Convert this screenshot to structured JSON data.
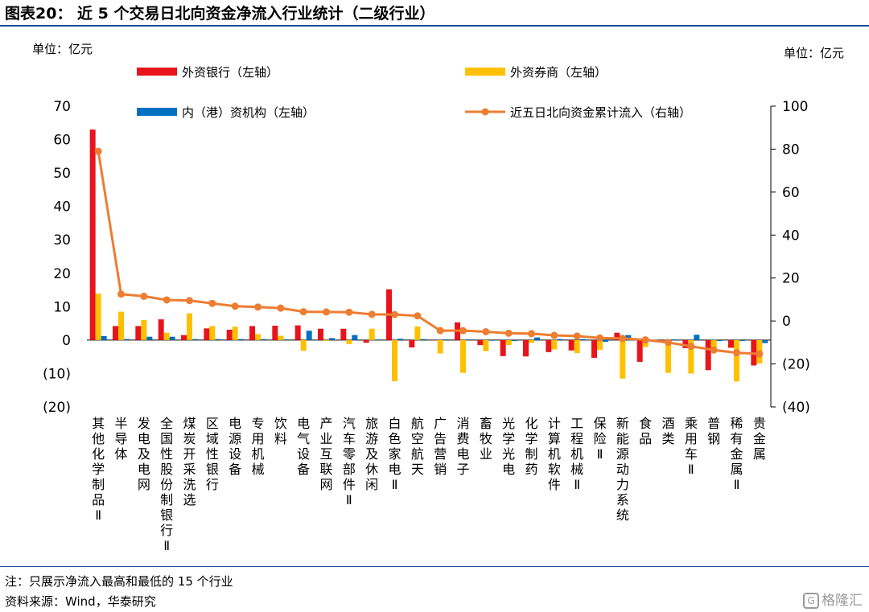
{
  "title": "图表20：  近 5 个交易日北向资金净流入行业统计（二级行业）",
  "note": "注：只展示净流入最高和最低的 15 个行业",
  "source": "资料来源：Wind，华泰研究",
  "watermark": {
    "icon": "G",
    "text": "格隆汇"
  },
  "chart_data": {
    "type": "bar",
    "left_unit": "单位：亿元",
    "right_unit": "单位：亿元",
    "categories": [
      "其他化学制品Ⅱ",
      "半导体",
      "发电及电网",
      "全国性股份制银行Ⅱ",
      "煤炭开采洗选",
      "区域性银行",
      "电源设备",
      "专用机械",
      "饮料",
      "电气设备",
      "产业互联网",
      "汽车零部件Ⅱ",
      "旅游及休闲",
      "白色家电Ⅱ",
      "航空航天",
      "广告营销",
      "消费电子",
      "畜牧业",
      "光学光电",
      "化学制药",
      "计算机软件",
      "工程机械Ⅱ",
      "保险Ⅱ",
      "新能源动力系统",
      "食品",
      "酒类",
      "乘用车Ⅱ",
      "普钢",
      "稀有金属Ⅱ",
      "贵金属"
    ],
    "series": [
      {
        "name": "外资银行（左轴）",
        "axis": "left",
        "color": "#e8141b",
        "values": [
          63,
          4.2,
          4.2,
          6.2,
          1.5,
          3.5,
          3.1,
          4.2,
          4.3,
          4.4,
          3.4,
          3.4,
          -0.8,
          15.2,
          -2.2,
          0,
          5.3,
          -1.5,
          -4.8,
          -4.9,
          -3.6,
          -3.1,
          -5.3,
          2.2,
          -6.5,
          0,
          -2.4,
          -9,
          -2.3,
          -7.6
        ]
      },
      {
        "name": "外资券商（左轴）",
        "axis": "left",
        "color": "#ffc000",
        "values": [
          13.9,
          8.5,
          6,
          2.2,
          8,
          4.2,
          4,
          1.8,
          1.3,
          -3.2,
          -0.3,
          -1.2,
          3.4,
          -12.3,
          4.1,
          -4,
          -9.8,
          -3.3,
          -1.5,
          -0.8,
          -2.8,
          -3.9,
          -2.9,
          -11.5,
          -2.1,
          -9.8,
          -10,
          -3.5,
          -12.4,
          -7
        ]
      },
      {
        "name": "内（港）资机构（左轴）",
        "axis": "left",
        "color": "#0070c0",
        "values": [
          1.2,
          0.3,
          1,
          1,
          0.3,
          0.3,
          0.3,
          0.3,
          0.2,
          2.8,
          0.6,
          1.5,
          0.2,
          0.4,
          0.3,
          0.2,
          0.2,
          -0.2,
          -0.3,
          0.8,
          0.3,
          0.3,
          -0.5,
          1.5,
          -0.2,
          0.2,
          1.6,
          -0.3,
          -0.3,
          -0.9
        ]
      },
      {
        "name": "近五日北向资金累计流入（右轴）",
        "axis": "right",
        "color": "#ed7d31",
        "type": "line",
        "values": [
          79,
          12.5,
          11.5,
          9.8,
          9.5,
          8.2,
          6.9,
          6.5,
          6,
          4.3,
          4.2,
          4.1,
          3.1,
          3,
          2.4,
          -4.5,
          -4.5,
          -5,
          -5.7,
          -5.9,
          -6.7,
          -7,
          -7.9,
          -8.1,
          -8.8,
          -10,
          -11.8,
          -13.5,
          -14.8,
          -15.3
        ]
      }
    ],
    "left_axis": {
      "min": -20,
      "max": 70,
      "step": 10,
      "tick_labels": [
        "(20)",
        "(10)",
        "0",
        "10",
        "20",
        "30",
        "40",
        "50",
        "60",
        "70"
      ]
    },
    "right_axis": {
      "min": -40,
      "max": 100,
      "step": 20,
      "tick_labels": [
        "(40)",
        "(20)",
        "0",
        "20",
        "40",
        "60",
        "80",
        "100"
      ]
    },
    "legend_position": "top"
  }
}
